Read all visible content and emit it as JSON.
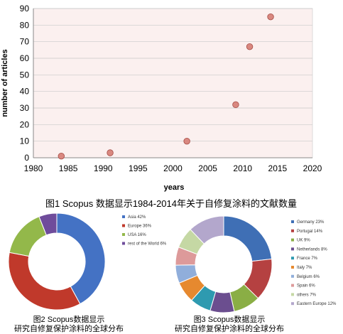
{
  "figure1": {
    "caption": "图1 Scopus 数据显示1984-2014年关于自修复涂料的文献数量",
    "chart_data": {
      "type": "scatter",
      "xlabel": "years",
      "ylabel": "number of articles",
      "xlim": [
        1980,
        2020
      ],
      "ylim": [
        0,
        90
      ],
      "xticks": [
        1980,
        1985,
        1990,
        1995,
        2000,
        2005,
        2010,
        2015,
        2020
      ],
      "yticks": [
        0,
        10,
        20,
        30,
        40,
        50,
        60,
        70,
        80,
        90
      ],
      "grid": "horizontal",
      "points": [
        {
          "x": 1984,
          "y": 1
        },
        {
          "x": 1991,
          "y": 3
        },
        {
          "x": 2002,
          "y": 10
        },
        {
          "x": 2009,
          "y": 32
        },
        {
          "x": 2011,
          "y": 67
        },
        {
          "x": 2014,
          "y": 85
        }
      ],
      "point_color": "#d98880",
      "point_stroke": "#a54b44",
      "plot_background": "#fbf0ef"
    }
  },
  "figure2": {
    "caption_line1": "图2 Scopus数据显示",
    "caption_line2": "研究自修复保护涂料的全球分布",
    "chart_data": {
      "type": "pie",
      "donut": true,
      "legend": "right",
      "categories": [
        "Asia 42%",
        "Europe 36%",
        "USA 16%",
        "rest of the World 6%"
      ],
      "values": [
        42,
        36,
        16,
        6
      ],
      "colors": [
        "#4472c4",
        "#c0392b",
        "#93b84a",
        "#6f4c9b"
      ]
    }
  },
  "figure3": {
    "caption_line1": "图3 Scopus数据显示",
    "caption_line2": "研究自修复保护涂料的全球分布",
    "chart_data": {
      "type": "pie",
      "donut": true,
      "legend": "right",
      "categories": [
        "Germany 23%",
        "Portugal 14%",
        "UK 9%",
        "Netherlands 8%",
        "France 7%",
        "Italy 7%",
        "Belgium 6%",
        "Spain 6%",
        "others 7%",
        "Eastern Europe 12%"
      ],
      "values": [
        23,
        14,
        9,
        8,
        7,
        7,
        6,
        6,
        7,
        12
      ],
      "colors": [
        "#3f6fb5",
        "#b54141",
        "#8aae45",
        "#6b4e8f",
        "#2e9ab0",
        "#e6892f",
        "#90aedb",
        "#dd9a9a",
        "#c5d8a4",
        "#b3a7cc"
      ]
    }
  }
}
